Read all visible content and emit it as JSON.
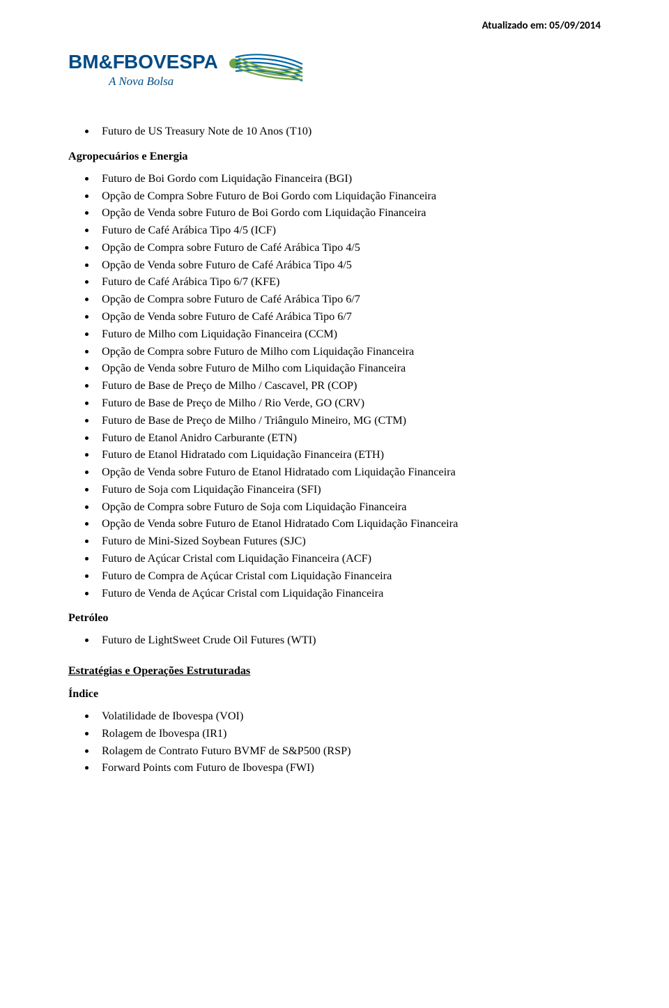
{
  "header": {
    "date_prefix": "Atualizado em: ",
    "date_value": "05/09/2014"
  },
  "logo": {
    "name_primary": "BM&FBOVESPA",
    "tagline": "A Nova Bolsa",
    "colors": {
      "blue": "#004b85",
      "italic_blue": "#004b85",
      "green": "#6fa544",
      "stripe_blue": "#0068a5"
    }
  },
  "top_items": [
    "Futuro de US Treasury Note de 10 Anos (T10)"
  ],
  "section_agro": {
    "heading": "Agropecuários e Energia",
    "items": [
      "Futuro de Boi Gordo com Liquidação Financeira (BGI)",
      "Opção de Compra Sobre Futuro de Boi Gordo com Liquidação Financeira",
      "Opção de Venda sobre Futuro de Boi Gordo com Liquidação Financeira",
      "Futuro de Café Arábica Tipo 4/5 (ICF)",
      "Opção de Compra sobre Futuro de Café Arábica Tipo 4/5",
      "Opção de Venda sobre Futuro de Café Arábica Tipo 4/5",
      "Futuro de Café Arábica Tipo 6/7 (KFE)",
      "Opção de Compra sobre Futuro de Café Arábica Tipo 6/7",
      "Opção de Venda sobre Futuro de Café Arábica Tipo 6/7",
      "Futuro de Milho com Liquidação Financeira (CCM)",
      "Opção de Compra sobre Futuro de Milho com Liquidação Financeira",
      "Opção de Venda sobre Futuro de Milho com Liquidação Financeira",
      "Futuro de Base de Preço de Milho / Cascavel, PR (COP)",
      "Futuro de Base de Preço de Milho / Rio Verde, GO (CRV)",
      "Futuro de Base de Preço de Milho / Triângulo Mineiro, MG (CTM)",
      "Futuro de Etanol Anidro Carburante (ETN)",
      "Futuro de Etanol Hidratado com Liquidação Financeira (ETH)",
      "Opção de Venda sobre Futuro de Etanol Hidratado com Liquidação Financeira",
      "Futuro de Soja com Liquidação Financeira (SFI)",
      "Opção de Compra sobre Futuro de Soja com Liquidação Financeira",
      "Opção de Venda sobre Futuro de Etanol Hidratado Com Liquidação Financeira",
      "Futuro de Mini-Sized Soybean Futures (SJC)",
      "Futuro de Açúcar Cristal com Liquidação Financeira (ACF)",
      "Futuro de Compra de Açúcar Cristal com Liquidação Financeira",
      "Futuro de Venda de Açúcar Cristal com Liquidação Financeira"
    ]
  },
  "section_petroleo": {
    "heading": "Petróleo",
    "items": [
      "Futuro de LightSweet Crude Oil Futures (WTI)"
    ]
  },
  "section_estrategias": {
    "heading": "Estratégias e Operações Estruturadas"
  },
  "section_indice": {
    "heading": "Índice",
    "items": [
      "Volatilidade de Ibovespa (VOI)",
      "Rolagem de Ibovespa (IR1)",
      "Rolagem de Contrato Futuro BVMF de S&P500 (RSP)",
      "Forward Points com Futuro de Ibovespa (FWI)"
    ]
  }
}
